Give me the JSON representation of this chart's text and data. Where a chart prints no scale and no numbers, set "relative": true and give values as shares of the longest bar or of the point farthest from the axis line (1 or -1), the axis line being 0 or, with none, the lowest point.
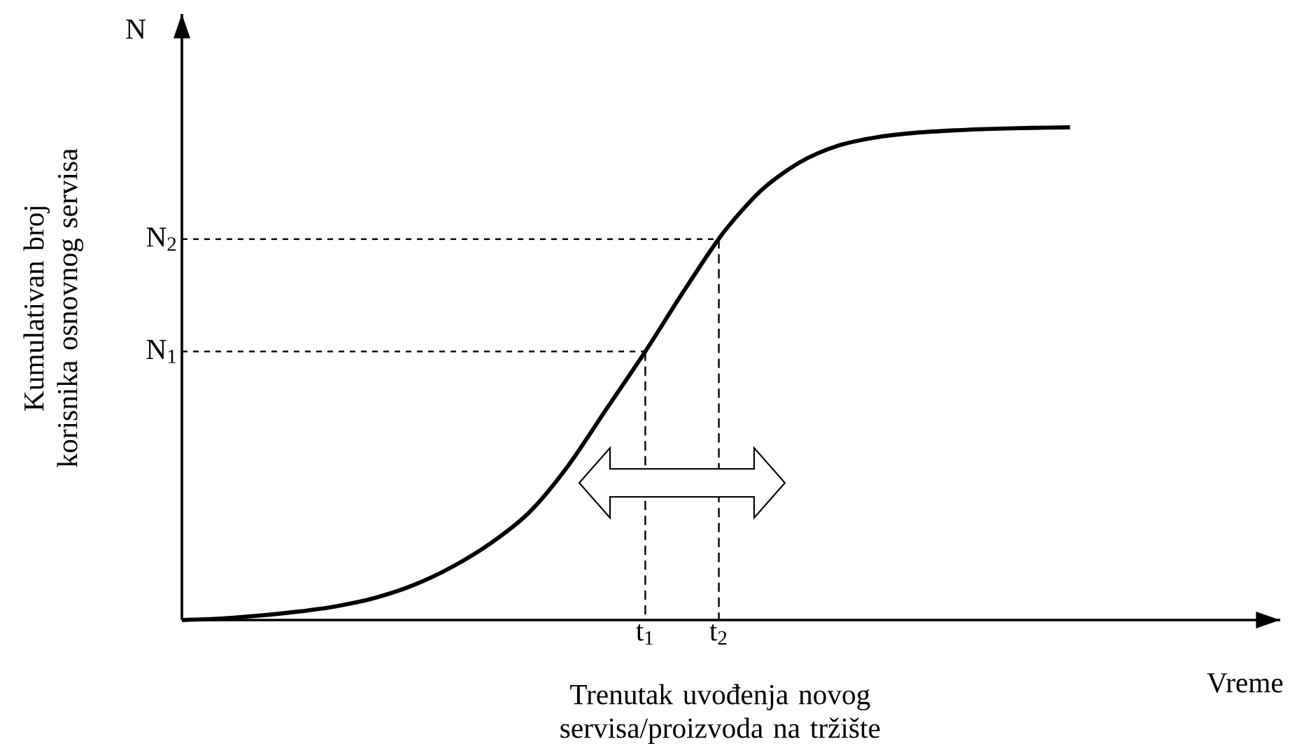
{
  "chart_data": {
    "type": "line",
    "relative": true,
    "color": "#000000",
    "line_style": "solid",
    "marker": "none",
    "xlabel": "Vreme",
    "ylabel": "Kumulativan broj korisnika osnovnog servisa",
    "categories": [
      null,
      null,
      null,
      null,
      null,
      null,
      null,
      null,
      null,
      null,
      null,
      null,
      null,
      null,
      null,
      null,
      null,
      null,
      null,
      null,
      null,
      null,
      null,
      null
    ],
    "values": [
      0,
      0.003,
      0.009,
      0.017,
      0.028,
      0.045,
      0.071,
      0.108,
      0.156,
      0.219,
      0.313,
      0.429,
      0.545,
      0.668,
      0.784,
      0.872,
      0.929,
      0.963,
      0.98,
      0.989,
      0.994,
      0.997,
      0.999,
      1
    ],
    "ref_lines": [
      {
        "axis": "y",
        "value": 0.545,
        "label": "N$_{1}$",
        "line_style": "dashed"
      },
      {
        "axis": "y",
        "value": 0.773,
        "label": "N$_{2}$",
        "line_style": "dashed"
      }
    ],
    "annotations": [
      "N",
      {
        "text": "t$_{1}$",
        "y": 0.545
      },
      {
        "text": "t$_{2}$",
        "y": 0.773
      },
      "Trenutak uvođenja novog servisa/proizvoda na tržište"
    ]
  }
}
